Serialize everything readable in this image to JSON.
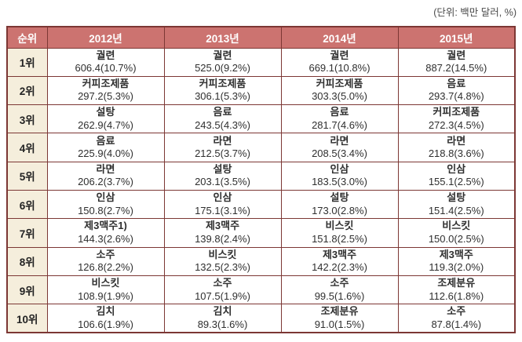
{
  "unit_note": "(단위: 백만 달러, %)",
  "colors": {
    "header_bg": "#cc7370",
    "header_text": "#ffffff",
    "rank_bg": "#f5eedc",
    "border": "#7c3734",
    "text": "#2f2f2f",
    "note_text": "#4a4a4a",
    "page_bg": "#ffffff"
  },
  "chart_data": {
    "type": "table",
    "unit_note": "(단위: 백만 달러, %)",
    "columns": [
      "순위",
      "2012년",
      "2013년",
      "2014년",
      "2015년"
    ],
    "rows": [
      {
        "rank": "1위",
        "cells": [
          {
            "item": "궐련",
            "value": "606.4(10.7%)"
          },
          {
            "item": "궐련",
            "value": "525.0(9.2%)"
          },
          {
            "item": "궐련",
            "value": "669.1(10.8%)"
          },
          {
            "item": "궐련",
            "value": "887.2(14.5%)"
          }
        ]
      },
      {
        "rank": "2위",
        "cells": [
          {
            "item": "커피조제품",
            "value": "297.2(5.3%)"
          },
          {
            "item": "커피조제품",
            "value": "306.1(5.3%)"
          },
          {
            "item": "커피조제품",
            "value": "303.3(5.0%)"
          },
          {
            "item": "음료",
            "value": "293.7(4.8%)"
          }
        ]
      },
      {
        "rank": "3위",
        "cells": [
          {
            "item": "설탕",
            "value": "262.9(4.7%)"
          },
          {
            "item": "음료",
            "value": "243.5(4.3%)"
          },
          {
            "item": "음료",
            "value": "281.7(4.6%)"
          },
          {
            "item": "커피조제품",
            "value": "272.3(4.5%)"
          }
        ]
      },
      {
        "rank": "4위",
        "cells": [
          {
            "item": "음료",
            "value": "225.9(4.0%)"
          },
          {
            "item": "라면",
            "value": "212.5(3.7%)"
          },
          {
            "item": "라면",
            "value": "208.5(3.4%)"
          },
          {
            "item": "라면",
            "value": "218.8(3.6%)"
          }
        ]
      },
      {
        "rank": "5위",
        "cells": [
          {
            "item": "라면",
            "value": "206.2(3.7%)"
          },
          {
            "item": "설탕",
            "value": "203.1(3.5%)"
          },
          {
            "item": "인삼",
            "value": "183.5(3.0%)"
          },
          {
            "item": "인삼",
            "value": "155.1(2.5%)"
          }
        ]
      },
      {
        "rank": "6위",
        "cells": [
          {
            "item": "인삼",
            "value": "150.8(2.7%)"
          },
          {
            "item": "인삼",
            "value": "175.1(3.1%)"
          },
          {
            "item": "설탕",
            "value": "173.0(2.8%)"
          },
          {
            "item": "설탕",
            "value": "151.4(2.5%)"
          }
        ]
      },
      {
        "rank": "7위",
        "cells": [
          {
            "item": "제3맥주1)",
            "value": "144.3(2.6%)"
          },
          {
            "item": "제3맥주",
            "value": "139.8(2.4%)"
          },
          {
            "item": "비스킷",
            "value": "151.8(2.5%)"
          },
          {
            "item": "비스킷",
            "value": "150.0(2.5%)"
          }
        ]
      },
      {
        "rank": "8위",
        "cells": [
          {
            "item": "소주",
            "value": "126.8(2.2%)"
          },
          {
            "item": "비스킷",
            "value": "132.5(2.3%)"
          },
          {
            "item": "제3맥주",
            "value": "142.2(2.3%)"
          },
          {
            "item": "제3맥주",
            "value": "119.3(2.0%)"
          }
        ]
      },
      {
        "rank": "9위",
        "cells": [
          {
            "item": "비스킷",
            "value": "108.9(1.9%)"
          },
          {
            "item": "소주",
            "value": "107.5(1.9%)"
          },
          {
            "item": "소주",
            "value": "99.5(1.6%)"
          },
          {
            "item": "조제분유",
            "value": "112.6(1.8%)"
          }
        ]
      },
      {
        "rank": "10위",
        "cells": [
          {
            "item": "김치",
            "value": "106.6(1.9%)"
          },
          {
            "item": "김치",
            "value": "89.3(1.6%)"
          },
          {
            "item": "조제분유",
            "value": "91.0(1.5%)"
          },
          {
            "item": "소주",
            "value": "87.8(1.4%)"
          }
        ]
      }
    ]
  }
}
